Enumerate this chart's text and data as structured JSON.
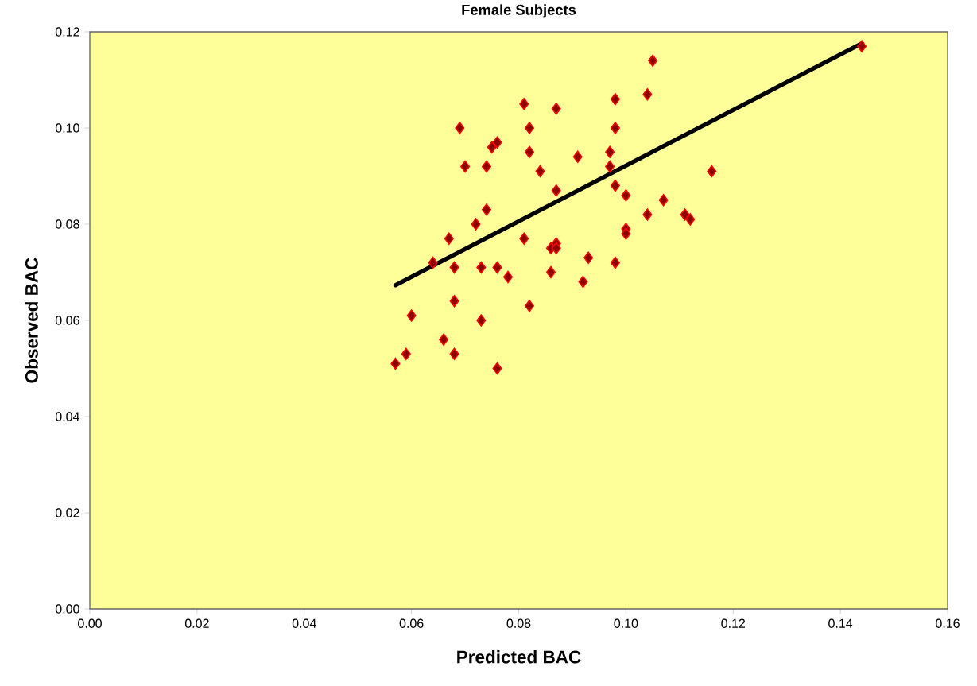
{
  "chart_data": {
    "type": "scatter",
    "title": "Female Subjects",
    "xlabel": "Predicted BAC",
    "ylabel": "Observed BAC",
    "xlim": [
      0,
      0.16
    ],
    "ylim": [
      0,
      0.12
    ],
    "xticks": [
      {
        "value": 0,
        "label": "0.00"
      },
      {
        "value": 0.02,
        "label": "0.02"
      },
      {
        "value": 0.04,
        "label": "0.04"
      },
      {
        "value": 0.06,
        "label": "0.06"
      },
      {
        "value": 0.08,
        "label": "0.08"
      },
      {
        "value": 0.1,
        "label": "0.10"
      },
      {
        "value": 0.12,
        "label": "0.12"
      },
      {
        "value": 0.14,
        "label": "0.14"
      },
      {
        "value": 0.16,
        "label": "0.16"
      }
    ],
    "yticks": [
      {
        "value": 0,
        "label": "0.00"
      },
      {
        "value": 0.02,
        "label": "0.02"
      },
      {
        "value": 0.04,
        "label": "0.04"
      },
      {
        "value": 0.06,
        "label": "0.06"
      },
      {
        "value": 0.08,
        "label": "0.08"
      },
      {
        "value": 0.1,
        "label": "0.10"
      },
      {
        "value": 0.12,
        "label": "0.12"
      }
    ],
    "grid": false,
    "series": [
      {
        "color": "#ff0000",
        "marker": "diamond",
        "x": [
          0.057,
          0.059,
          0.06,
          0.064,
          0.067,
          0.066,
          0.068,
          0.068,
          0.068,
          0.069,
          0.07,
          0.072,
          0.073,
          0.073,
          0.074,
          0.074,
          0.075,
          0.076,
          0.076,
          0.076,
          0.078,
          0.081,
          0.081,
          0.082,
          0.082,
          0.082,
          0.084,
          0.086,
          0.086,
          0.087,
          0.087,
          0.087,
          0.087,
          0.091,
          0.092,
          0.093,
          0.097,
          0.097,
          0.098,
          0.098,
          0.098,
          0.098,
          0.1,
          0.1,
          0.1,
          0.104,
          0.104,
          0.105,
          0.107,
          0.111,
          0.112,
          0.116,
          0.144
        ],
        "values": [
          0.051,
          0.053,
          0.061,
          0.072,
          0.077,
          0.056,
          0.071,
          0.064,
          0.053,
          0.1,
          0.092,
          0.08,
          0.071,
          0.06,
          0.083,
          0.092,
          0.096,
          0.097,
          0.071,
          0.05,
          0.069,
          0.077,
          0.105,
          0.1,
          0.095,
          0.063,
          0.091,
          0.07,
          0.075,
          0.104,
          0.087,
          0.076,
          0.075,
          0.094,
          0.068,
          0.073,
          0.095,
          0.092,
          0.106,
          0.1,
          0.088,
          0.072,
          0.086,
          0.079,
          0.078,
          0.107,
          0.082,
          0.114,
          0.085,
          0.082,
          0.081,
          0.091,
          0.117
        ]
      },
      {
        "type": "line",
        "color": "#000000",
        "marker": "none",
        "line_style": "solid",
        "x": [
          0.057,
          0.144
        ],
        "values": [
          0.0673,
          0.1176
        ]
      }
    ]
  }
}
